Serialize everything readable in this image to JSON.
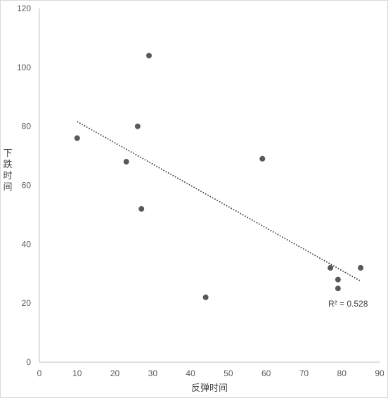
{
  "chart_data": {
    "type": "scatter",
    "title": "",
    "xlabel": "反弹时间",
    "ylabel": "下跌时间",
    "xlim": [
      0,
      90
    ],
    "ylim": [
      0,
      120
    ],
    "xticks": [
      0,
      10,
      20,
      30,
      40,
      50,
      60,
      70,
      80,
      90
    ],
    "yticks": [
      0,
      20,
      40,
      60,
      80,
      100,
      120
    ],
    "grid": false,
    "point_color": "#595959",
    "trendline_color": "#404040",
    "points": [
      {
        "x": 10,
        "y": 76
      },
      {
        "x": 23,
        "y": 68
      },
      {
        "x": 26,
        "y": 80
      },
      {
        "x": 27,
        "y": 52
      },
      {
        "x": 29,
        "y": 104
      },
      {
        "x": 44,
        "y": 22
      },
      {
        "x": 59,
        "y": 69
      },
      {
        "x": 77,
        "y": 32
      },
      {
        "x": 79,
        "y": 28
      },
      {
        "x": 79,
        "y": 25
      },
      {
        "x": 85,
        "y": 32
      }
    ],
    "trendline": {
      "type": "linear",
      "x_range": [
        10,
        85
      ],
      "y_values": [
        81.6,
        27.5
      ],
      "label": "R² = 0.528"
    }
  }
}
